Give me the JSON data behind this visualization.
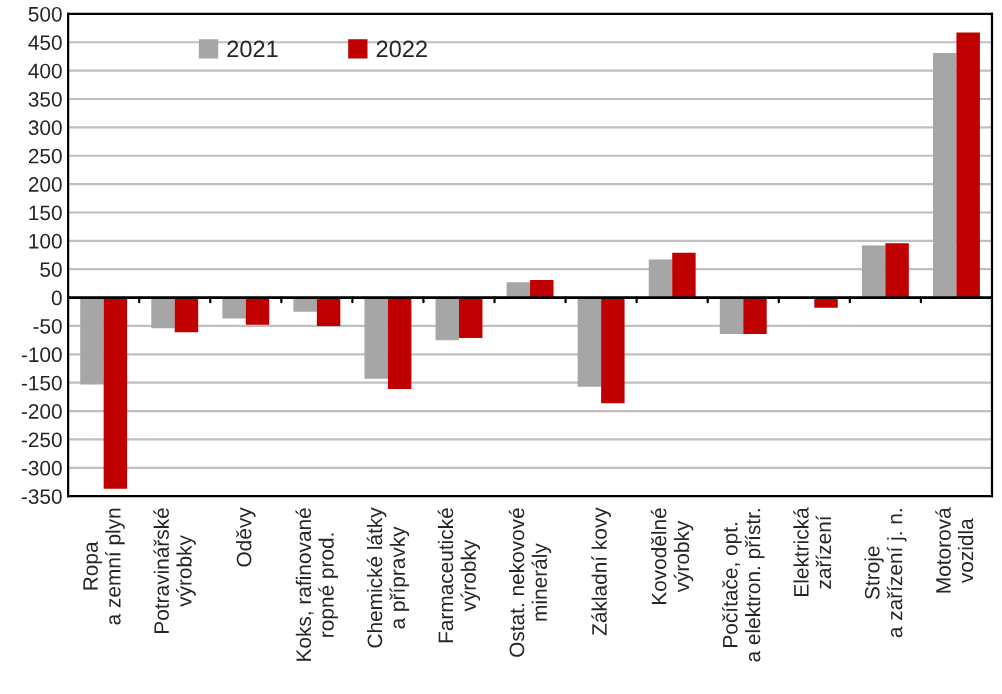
{
  "chart_data": {
    "type": "bar",
    "categories": [
      "Ropa\na zemní plyn",
      "Potravinářské\nvýrobky",
      "Oděvy",
      "Koks, rafinované\nropné prod.",
      "Chemické látky\na přípravky",
      "Farmaceutické\nvýrobky",
      "Ostat. nekovové\nminerály",
      "Základní kovy",
      "Kovodělné\nvýrobky",
      "Počítače, opt.\na elektron. přístr.",
      "Elektrická\nzařízení",
      "Stroje\na zařízení j. n.",
      "Motorová\nvozidla"
    ],
    "series": [
      {
        "name": "2021",
        "color": "#a6a6a6",
        "values": [
          -153,
          -54,
          -37,
          -25,
          -143,
          -75,
          27,
          -157,
          67,
          -64,
          null,
          92,
          431
        ]
      },
      {
        "name": "2022",
        "color": "#c00000",
        "values": [
          -337,
          -61,
          -48,
          -50,
          -161,
          -71,
          31,
          -186,
          79,
          -64,
          -18,
          96,
          467
        ]
      }
    ],
    "ylim": [
      -350,
      500
    ],
    "yticks": [
      -350,
      -300,
      -250,
      -200,
      -150,
      -100,
      -50,
      0,
      50,
      100,
      150,
      200,
      250,
      300,
      350,
      400,
      450,
      500
    ],
    "grid": "y",
    "legend": "top left"
  }
}
